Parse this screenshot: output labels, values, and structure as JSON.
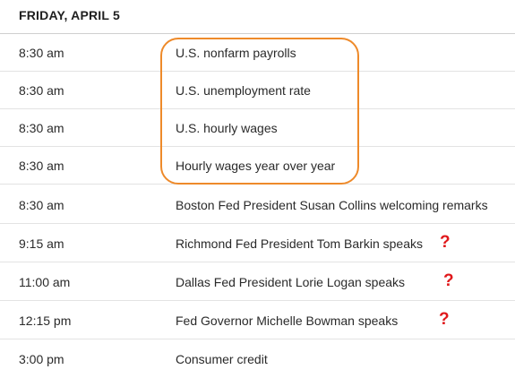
{
  "schedule": {
    "day_header": "FRIDAY, APRIL 5",
    "rows": [
      {
        "time": "8:30 am",
        "event": "U.S. nonfarm payrolls",
        "flag": ""
      },
      {
        "time": "8:30 am",
        "event": "U.S. unemployment rate",
        "flag": ""
      },
      {
        "time": "8:30 am",
        "event": "U.S. hourly wages",
        "flag": ""
      },
      {
        "time": "8:30 am",
        "event": "Hourly wages year over year",
        "flag": ""
      },
      {
        "time": "8:30 am",
        "event": "Boston Fed President Susan Collins welcoming remarks",
        "flag": ""
      },
      {
        "time": "9:15 am",
        "event": "Richmond Fed President Tom Barkin speaks",
        "flag": "?"
      },
      {
        "time": "11:00 am",
        "event": "Dallas Fed President Lorie Logan speaks",
        "flag": "?"
      },
      {
        "time": "12:15 pm",
        "event": "Fed Governor Michelle Bowman speaks",
        "flag": "?"
      },
      {
        "time": "3:00 pm",
        "event": "Consumer credit",
        "flag": ""
      }
    ]
  },
  "colors": {
    "highlight_outline": "#ee8a2a",
    "flag": "#e0181b"
  },
  "icons": {
    "flag_icon": "question-mark-icon"
  }
}
